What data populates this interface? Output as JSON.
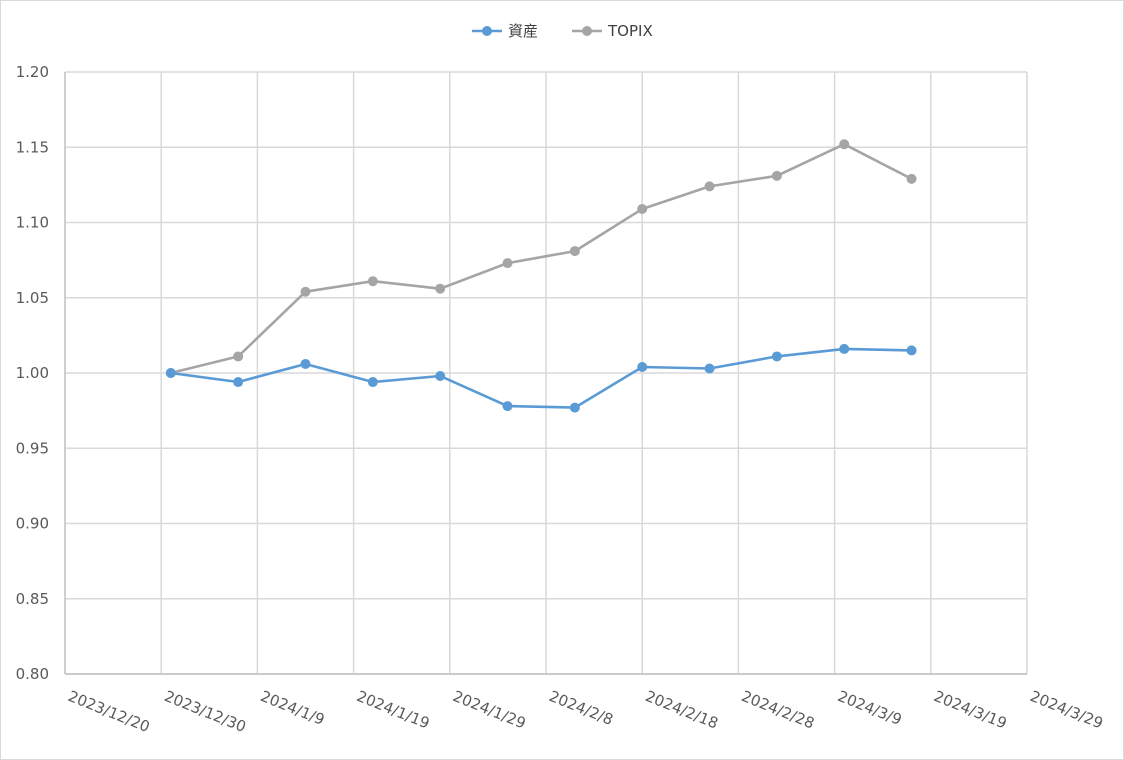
{
  "chart_data": {
    "type": "line",
    "title": "",
    "xlabel": "",
    "ylabel": "",
    "x_axis": {
      "type": "date",
      "range": [
        "2023-12-20",
        "2024-03-29"
      ],
      "tick_labels": [
        "2023/12/20",
        "2023/12/30",
        "2024/1/9",
        "2024/1/19",
        "2024/1/29",
        "2024/2/8",
        "2024/2/18",
        "2024/2/28",
        "2024/3/9",
        "2024/3/19",
        "2024/3/29"
      ],
      "tick_dates": [
        "2023-12-20",
        "2023-12-30",
        "2024-01-09",
        "2024-01-19",
        "2024-01-29",
        "2024-02-08",
        "2024-02-18",
        "2024-02-28",
        "2024-03-09",
        "2024-03-19",
        "2024-03-29"
      ]
    },
    "y_axis": {
      "range": [
        0.8,
        1.2
      ],
      "tick_labels": [
        "0.80",
        "0.85",
        "0.90",
        "0.95",
        "1.00",
        "1.05",
        "1.10",
        "1.15",
        "1.20"
      ],
      "tick_values": [
        0.8,
        0.85,
        0.9,
        0.95,
        1.0,
        1.05,
        1.1,
        1.15,
        1.2
      ]
    },
    "grid": true,
    "legend_position": "top",
    "x": [
      "2023-12-31",
      "2024-01-07",
      "2024-01-14",
      "2024-01-21",
      "2024-01-28",
      "2024-02-04",
      "2024-02-11",
      "2024-02-18",
      "2024-02-25",
      "2024-03-03",
      "2024-03-10",
      "2024-03-17"
    ],
    "series": [
      {
        "name": "資産",
        "color": "#5b9bd5",
        "values": [
          1.0,
          0.994,
          1.006,
          0.994,
          0.998,
          0.978,
          0.977,
          1.004,
          1.003,
          1.011,
          1.016,
          1.015
        ]
      },
      {
        "name": "TOPIX",
        "color": "#a5a5a5",
        "values": [
          1.0,
          1.011,
          1.054,
          1.061,
          1.056,
          1.073,
          1.081,
          1.109,
          1.124,
          1.131,
          1.152,
          1.129
        ]
      }
    ]
  }
}
